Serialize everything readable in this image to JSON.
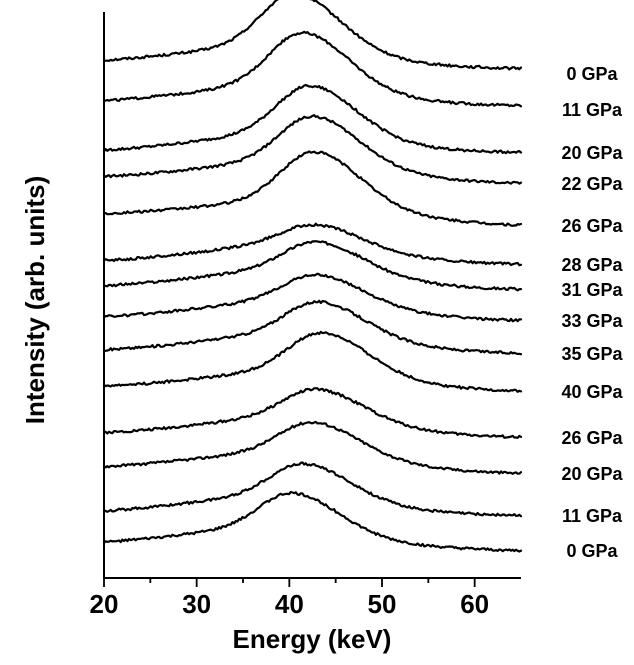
{
  "chart_data": {
    "type": "line",
    "title": "",
    "xlabel": "Energy (keV)",
    "ylabel": "Intensity (arb. units)",
    "xlim": [
      20,
      65
    ],
    "x_ticks": [
      20,
      30,
      40,
      50,
      60
    ],
    "x_minor_ticks": [
      25,
      35,
      45,
      55
    ],
    "grid": false,
    "legend": "none",
    "series_label_placement": "right of each curve",
    "note": "Stacked spectra with vertical offsets; peak parameters approximate",
    "series": [
      {
        "label": "0 GPa",
        "peak_kev": 40.6,
        "peak_height": 0.55,
        "baseline_start": 0.1,
        "baseline_end": 0.05
      },
      {
        "label": "11 GPa",
        "peak_kev": 41.5,
        "peak_height": 0.55,
        "baseline_start": 0.06,
        "baseline_end": 0.04
      },
      {
        "label": "20 GPa",
        "peak_kev": 42.3,
        "peak_height": 0.5,
        "baseline_start": 0.0,
        "baseline_end": 0.0
      },
      {
        "label": "22 GPa",
        "peak_kev": 42.6,
        "peak_height": 0.48,
        "baseline_start": 0.05,
        "baseline_end": 0.0
      },
      {
        "label": "26 GPa",
        "peak_kev": 42.8,
        "peak_height": 0.52,
        "baseline_start": 0.1,
        "baseline_end": 0.0
      },
      {
        "label": "28 GPa",
        "peak_kev": 42.8,
        "peak_height": 0.22,
        "baseline_start": 0.02,
        "baseline_end": 0.0
      },
      {
        "label": "31 GPa",
        "peak_kev": 43.0,
        "peak_height": 0.3,
        "baseline_start": 0.02,
        "baseline_end": 0.0
      },
      {
        "label": "33 GPa",
        "peak_kev": 43.0,
        "peak_height": 0.28,
        "baseline_start": 0.02,
        "baseline_end": 0.0
      },
      {
        "label": "35 GPa",
        "peak_kev": 43.2,
        "peak_height": 0.34,
        "baseline_start": 0.02,
        "baseline_end": 0.0
      },
      {
        "label": "40 GPa",
        "peak_kev": 43.6,
        "peak_height": 0.4,
        "baseline_start": 0.04,
        "baseline_end": 0.0
      },
      {
        "label": "26 GPa",
        "peak_kev": 43.0,
        "peak_height": 0.3,
        "baseline_start": 0.03,
        "baseline_end": 0.0
      },
      {
        "label": "20 GPa",
        "peak_kev": 42.6,
        "peak_height": 0.32,
        "baseline_start": 0.05,
        "baseline_end": 0.0
      },
      {
        "label": "11 GPa",
        "peak_kev": 41.6,
        "peak_height": 0.34,
        "baseline_start": 0.02,
        "baseline_end": 0.0
      },
      {
        "label": "0 GPa",
        "peak_kev": 40.4,
        "peak_height": 0.38,
        "baseline_start": 0.05,
        "baseline_end": 0.0
      }
    ]
  }
}
